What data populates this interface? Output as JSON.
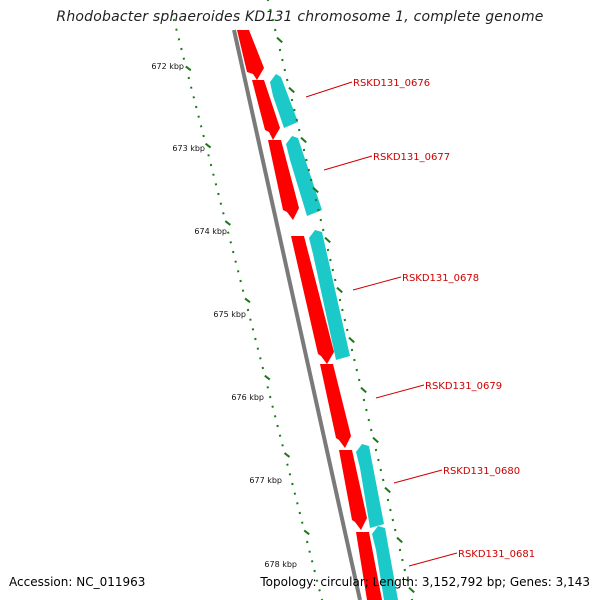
{
  "title": "Rhodobacter sphaeroides KD131 chromosome 1, complete genome",
  "footer": {
    "accession": "Accession: NC_011963",
    "summary": "Topology: circular; Length: 3,152,792 bp; Genes: 3,143"
  },
  "colors": {
    "backbone": "#7a7a7a",
    "forward_cds": "#ff0000",
    "reverse_cds": "#1cc9c9",
    "ticks": "#1a7a1a",
    "labels": "#cc0000"
  },
  "scale_ticks": [
    {
      "label": "672 kbp",
      "position_kbp": 672
    },
    {
      "label": "673 kbp",
      "position_kbp": 673
    },
    {
      "label": "674 kbp",
      "position_kbp": 674
    },
    {
      "label": "675 kbp",
      "position_kbp": 675
    },
    {
      "label": "676 kbp",
      "position_kbp": 676
    },
    {
      "label": "677 kbp",
      "position_kbp": 677
    },
    {
      "label": "678 kbp",
      "position_kbp": 678
    }
  ],
  "genes": [
    {
      "label": "RSKD131_0676"
    },
    {
      "label": "RSKD131_0677"
    },
    {
      "label": "RSKD131_0678"
    },
    {
      "label": "RSKD131_0679"
    },
    {
      "label": "RSKD131_0680"
    },
    {
      "label": "RSKD131_0681"
    }
  ]
}
